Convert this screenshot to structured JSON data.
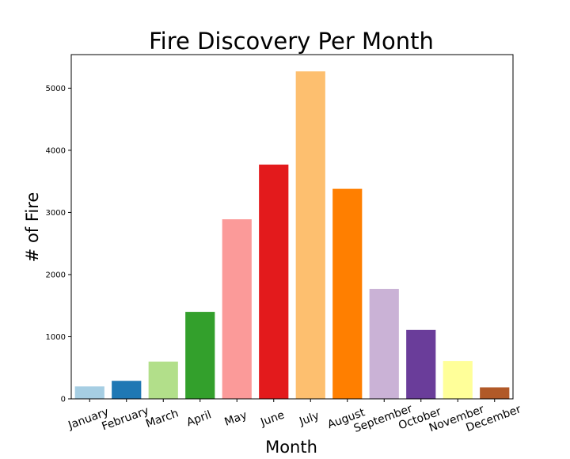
{
  "chart_data": {
    "type": "bar",
    "title": "Fire Discovery Per Month",
    "xlabel": "Month",
    "ylabel": "# of Fire",
    "categories": [
      "January",
      "February",
      "March",
      "April",
      "May",
      "June",
      "July",
      "August",
      "September",
      "October",
      "November",
      "December"
    ],
    "values": [
      200,
      290,
      600,
      1400,
      2890,
      3770,
      5270,
      3380,
      1770,
      1110,
      610,
      185
    ],
    "colors": [
      "#a6cee3",
      "#1f78b4",
      "#b2df8a",
      "#33a02c",
      "#fb9a99",
      "#e31a1c",
      "#fdbf6f",
      "#ff7f00",
      "#cab2d6",
      "#6a3d9a",
      "#ffff99",
      "#b15928"
    ],
    "yticks": [
      0,
      1000,
      2000,
      3000,
      4000,
      5000
    ],
    "ylim": [
      0,
      5540
    ],
    "grid": false,
    "legend": "none"
  }
}
